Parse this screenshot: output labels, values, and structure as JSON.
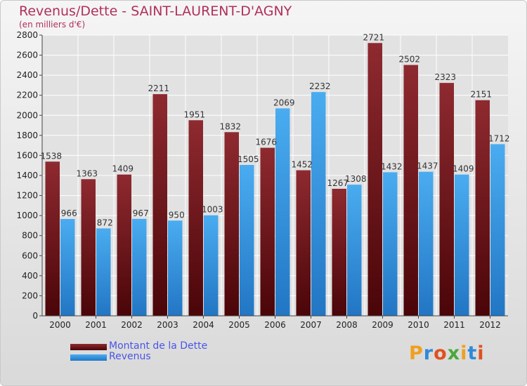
{
  "chart_data": {
    "type": "bar",
    "title": "Revenus/Dette - SAINT-LAURENT-D'AGNY",
    "subtitle": "(en milliers d'€)",
    "xlabel": "",
    "ylabel": "",
    "categories": [
      "2000",
      "2001",
      "2002",
      "2003",
      "2004",
      "2005",
      "2006",
      "2007",
      "2008",
      "2009",
      "2010",
      "2011",
      "2012"
    ],
    "series": [
      {
        "name": "Montant de la Dette",
        "color": "#7a1a1f",
        "values": [
          1538,
          1363,
          1409,
          2211,
          1951,
          1832,
          1676,
          1452,
          1267,
          2721,
          2502,
          2323,
          2151
        ]
      },
      {
        "name": "Revenus",
        "color": "#3b9de6",
        "values": [
          966,
          872,
          967,
          950,
          1003,
          1505,
          2069,
          2232,
          1308,
          1432,
          1437,
          1409,
          1712
        ]
      }
    ],
    "ylim": [
      0,
      2800
    ],
    "yticks": [
      0,
      200,
      400,
      600,
      800,
      1000,
      1200,
      1400,
      1600,
      1800,
      2000,
      2200,
      2400,
      2600,
      2800
    ],
    "grid": true,
    "legend_position": "bottom-left"
  },
  "logo": {
    "letters": [
      "P",
      "r",
      "o",
      "x",
      "i",
      "t",
      "i"
    ],
    "colors": [
      "#f0a020",
      "#2f8ad8",
      "#e05020",
      "#49a83c",
      "#f0a020",
      "#2f8ad8",
      "#e05020"
    ]
  }
}
